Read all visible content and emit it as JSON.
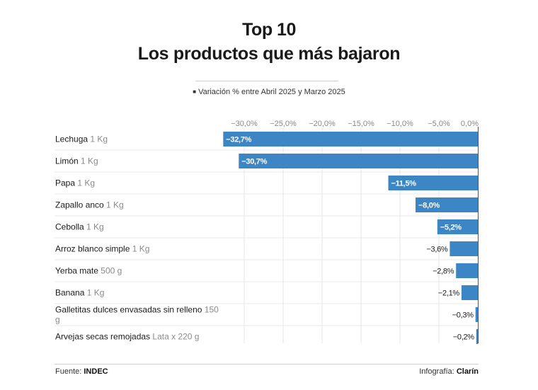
{
  "title": "Top 10",
  "subtitle": "Los productos que más bajaron",
  "legend_text": "Variación % entre Abril 2025 y Marzo 2025",
  "footer": {
    "source_label": "Fuente:",
    "source_value": "INDEC",
    "credit_label": "Infografía:",
    "credit_value": "Clarín"
  },
  "colors": {
    "bar": "#3d86c6",
    "text": "#1a1a1a",
    "unit": "#8a8a8a",
    "grid": "#e6e6e6"
  },
  "chart_data": {
    "type": "bar",
    "orientation": "horizontal",
    "xlim": [
      -33,
      0
    ],
    "ticks": [
      -30,
      -25,
      -20,
      -15,
      -10,
      -5,
      0
    ],
    "tick_labels": [
      "−30,0%",
      "−25,0%",
      "−20,0%",
      "−15,0%",
      "−10,0%",
      "−5,0%",
      "0,0%"
    ],
    "grid": true,
    "categories": [
      {
        "name": "Lechuga",
        "unit": "1 Kg"
      },
      {
        "name": "Limón",
        "unit": "1 Kg"
      },
      {
        "name": "Papa",
        "unit": "1 Kg"
      },
      {
        "name": "Zapallo anco",
        "unit": "1 Kg"
      },
      {
        "name": "Cebolla",
        "unit": "1 Kg"
      },
      {
        "name": "Arroz blanco simple",
        "unit": "1 Kg"
      },
      {
        "name": "Yerba mate",
        "unit": "500 g"
      },
      {
        "name": "Banana",
        "unit": "1 Kg"
      },
      {
        "name": "Galletitas dulces envasadas sin relleno",
        "unit": "150 g"
      },
      {
        "name": "Arvejas secas remojadas",
        "unit": "Lata x 220 g"
      }
    ],
    "values": [
      -32.7,
      -30.7,
      -11.5,
      -8.0,
      -5.2,
      -3.6,
      -2.8,
      -2.1,
      -0.3,
      -0.2
    ],
    "value_labels": [
      "−32,7%",
      "−30,7%",
      "−11,5%",
      "−8,0%",
      "−5,2%",
      "−3,6%",
      "−2,8%",
      "−2,1%",
      "−0,3%",
      "−0,2%"
    ]
  }
}
